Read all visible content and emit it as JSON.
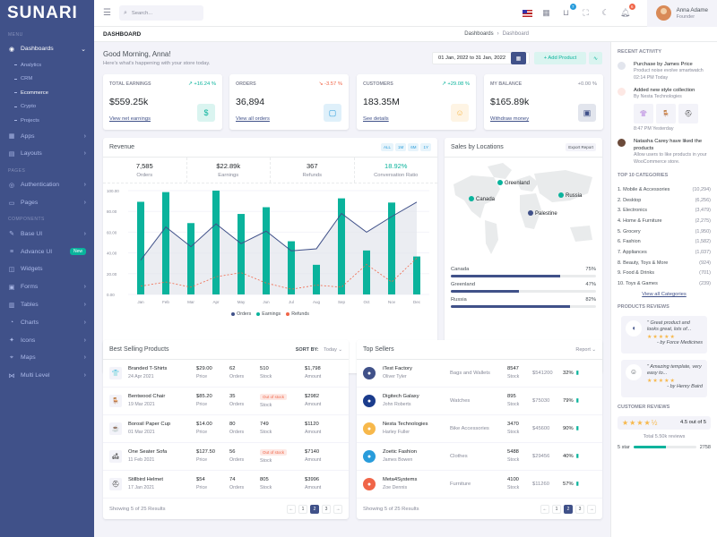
{
  "brand": {
    "logo": "SUNARI"
  },
  "sidebar": {
    "menu_title": "MENU",
    "dashboards": "Dashboards",
    "subs": [
      {
        "label": "Analytics"
      },
      {
        "label": "CRM"
      },
      {
        "label": "Ecommerce"
      },
      {
        "label": "Crypto"
      },
      {
        "label": "Projects"
      }
    ],
    "apps": "Apps",
    "layouts": "Layouts",
    "pages_title": "PAGES",
    "authentication": "Authentication",
    "pages": "Pages",
    "components_title": "COMPONENTS",
    "comp": [
      {
        "label": "Base UI"
      },
      {
        "label": "Advance UI"
      },
      {
        "label": "Widgets"
      },
      {
        "label": "Forms"
      },
      {
        "label": "Tables"
      },
      {
        "label": "Charts"
      },
      {
        "label": "Icons"
      },
      {
        "label": "Maps"
      },
      {
        "label": "Multi Level"
      }
    ],
    "new_badge": "New"
  },
  "topbar": {
    "search_placeholder": "Search...",
    "cart_count": "7",
    "notif_count": "6",
    "user_name": "Anna Adame",
    "user_role": "Founder"
  },
  "pagebar": {
    "title": "DASHBOARD",
    "crumb_1": "Dashboards",
    "crumb_2": "Dashboard"
  },
  "greeting": {
    "title": "Good Morning, Anna!",
    "subtitle": "Here's what's happening with your store today.",
    "date_range": "01 Jan, 2022 to 31 Jan, 2022",
    "add_product": "+ Add Product"
  },
  "kpis": [
    {
      "label": "TOTAL EARNINGS",
      "pct": "+16.24 %",
      "value": "$559.25k",
      "link": "View net earnings",
      "color": "#0ab39c",
      "bg": "#daf4f0",
      "icon": "$"
    },
    {
      "label": "ORDERS",
      "pct": "-3.57 %",
      "value": "36,894",
      "link": "View all orders",
      "color": "#299cdb",
      "bg": "#dff0fa",
      "icon": "▢"
    },
    {
      "label": "CUSTOMERS",
      "pct": "+29.08 %",
      "value": "183.35M",
      "link": "See details",
      "color": "#f7b84b",
      "bg": "#fef4e4",
      "icon": "☺"
    },
    {
      "label": "MY BALANCE",
      "pct": "+0.00 %",
      "value": "$165.89k",
      "link": "Withdraw money",
      "color": "#405189",
      "bg": "#e2e5ed",
      "icon": "▣"
    }
  ],
  "revenue": {
    "title": "Revenue",
    "filters": [
      "ALL",
      "1M",
      "6M",
      "1Y"
    ],
    "stats": [
      {
        "n": "7,585",
        "t": "Orders"
      },
      {
        "n": "$22.89k",
        "t": "Earnings"
      },
      {
        "n": "367",
        "t": "Refunds"
      },
      {
        "n": "18.92%",
        "t": "Conversation Ratio"
      }
    ],
    "legend": [
      "Orders",
      "Earnings",
      "Refunds"
    ]
  },
  "chart_data": {
    "type": "bar",
    "categories": [
      "Jan",
      "Feb",
      "Mar",
      "Apr",
      "May",
      "Jun",
      "Jul",
      "Aug",
      "Sep",
      "Oct",
      "Nov",
      "Dec"
    ],
    "y_ticks": [
      "100.00",
      "80.00",
      "60.00",
      "40.00",
      "20.00",
      "0.00"
    ],
    "ylim": [
      0,
      100
    ],
    "series": [
      {
        "name": "Orders",
        "type": "area",
        "values": [
          33,
          65,
          46,
          68,
          49,
          61,
          42,
          44,
          78,
          60,
          75,
          89
        ],
        "color": "#405189"
      },
      {
        "name": "Earnings",
        "type": "bar",
        "values": [
          89.25,
          98.58,
          68.74,
          108.87,
          77.54,
          84.03,
          51.24,
          28.57,
          92.57,
          42.36,
          88.51,
          36.57
        ],
        "color": "#0ab39c"
      },
      {
        "name": "Refunds",
        "type": "line",
        "values": [
          8,
          12,
          7,
          17,
          21,
          11,
          5,
          9,
          7,
          29,
          12,
          35
        ],
        "color": "#f06548"
      }
    ]
  },
  "sales_loc": {
    "title": "Sales by Locations",
    "export": "Export Report",
    "markers": [
      "Greenland",
      "Russia",
      "Canada",
      "Palestine"
    ],
    "rows": [
      {
        "name": "Canada",
        "pct": "75%",
        "value": 0.75
      },
      {
        "name": "Greenland",
        "pct": "47%",
        "value": 0.47
      },
      {
        "name": "Russia",
        "pct": "82%",
        "value": 0.82
      }
    ]
  },
  "best_selling": {
    "title": "Best Selling Products",
    "sort_label": "SORT BY:",
    "sort_value": "Today ⌄",
    "rows": [
      {
        "name": "Branded T-Shirts",
        "date": "24 Apr 2021",
        "price": "$29.00",
        "orders": "62",
        "stock": "510",
        "amount": "$1,798",
        "icon": "👕",
        "oos": false
      },
      {
        "name": "Bentwood Chair",
        "date": "19 Mar 2021",
        "price": "$85.20",
        "orders": "35",
        "stock": "",
        "amount": "$2982",
        "icon": "🪑",
        "oos": true
      },
      {
        "name": "Borosil Paper Cup",
        "date": "01 Mar 2021",
        "price": "$14.00",
        "orders": "80",
        "stock": "749",
        "amount": "$1120",
        "icon": "☕",
        "oos": false
      },
      {
        "name": "One Seater Sofa",
        "date": "11 Feb 2021",
        "price": "$127.50",
        "orders": "56",
        "stock": "",
        "amount": "$7140",
        "icon": "🛋",
        "oos": true
      },
      {
        "name": "Stillbird Helmet",
        "date": "17 Jan 2021",
        "price": "$54",
        "orders": "74",
        "stock": "805",
        "amount": "$3996",
        "icon": "⛑",
        "oos": false
      }
    ],
    "labels": {
      "price": "Price",
      "orders": "Orders",
      "stock": "Stock",
      "amount": "Amount",
      "out_of_stock": "Out of stock"
    },
    "footer": "Showing 5 of 25 Results"
  },
  "top_sellers": {
    "title": "Top Sellers",
    "report": "Report ⌄",
    "rows": [
      {
        "name": "iTest Factory",
        "person": "Oliver Tyler",
        "cat": "Bags and Wallets",
        "stock": "8547",
        "amount": "$541200",
        "pct": "32%",
        "color": "#405189"
      },
      {
        "name": "Digitech Galaxy",
        "person": "John Roberts",
        "cat": "Watches",
        "stock": "895",
        "amount": "$75030",
        "pct": "79%",
        "color": "#1b3c8c"
      },
      {
        "name": "Nesta Technologies",
        "person": "Harley Fuller",
        "cat": "Bike Accessories",
        "stock": "3470",
        "amount": "$45600",
        "pct": "90%",
        "color": "#f7b84b"
      },
      {
        "name": "Zoetic Fashion",
        "person": "James Bowen",
        "cat": "Clothes",
        "stock": "5488",
        "amount": "$29456",
        "pct": "40%",
        "color": "#299cdb"
      },
      {
        "name": "Meta4Systems",
        "person": "Zoe Dennis",
        "cat": "Furniture",
        "stock": "4100",
        "amount": "$11260",
        "pct": "57%",
        "color": "#f06548"
      }
    ],
    "stock_label": "Stock",
    "footer": "Showing 5 of 25 Results"
  },
  "pagination": {
    "prev": "←",
    "p1": "1",
    "p2": "2",
    "p3": "3",
    "next": "→"
  },
  "right": {
    "recent_title": "RECENT ACTIVITY",
    "activity": [
      {
        "h": "Purchase by James Price",
        "d1": "Product noise evolve smartwatch",
        "d2": "02:14 PM Today",
        "color": "#405189"
      },
      {
        "h": "Added new style collection",
        "d1": "By Nesta Technologies",
        "d2": "8:47 PM Yesterday",
        "color": "#f06548"
      },
      {
        "h": "Natasha Carey have liked the products",
        "d1": "Allow users to like products in your WooCommerce store.",
        "d2": "",
        "color": "#6b4a3a"
      }
    ],
    "cat_title": "TOP 10 CATEGORIES",
    "categories": [
      {
        "n": "1. Mobile & Accessories",
        "v": "(10,294)"
      },
      {
        "n": "2. Desktop",
        "v": "(6,256)"
      },
      {
        "n": "3. Electronics",
        "v": "(3,479)"
      },
      {
        "n": "4. Home & Furniture",
        "v": "(2,275)"
      },
      {
        "n": "5. Grocery",
        "v": "(1,950)"
      },
      {
        "n": "6. Fashion",
        "v": "(1,582)"
      },
      {
        "n": "7. Appliances",
        "v": "(1,037)"
      },
      {
        "n": "8. Beauty, Toys & More",
        "v": "(924)"
      },
      {
        "n": "9. Food & Drinks",
        "v": "(701)"
      },
      {
        "n": "10. Toys & Games",
        "v": "(239)"
      }
    ],
    "view_all": "View all Categories",
    "reviews_title": "PRODUCTS REVIEWS",
    "reviews": [
      {
        "q": "\" Great product and looks great, lots of...",
        "by": "- by Force Medicines"
      },
      {
        "q": "\" Amazing template, very easy to...",
        "by": "- by Henry Baird"
      }
    ],
    "rating_title": "CUSTOMER REVIEWS",
    "rating": "4.5 out of 5",
    "total": "Total 5.50k reviews",
    "five_star": "5 star",
    "five_count": "2758"
  }
}
